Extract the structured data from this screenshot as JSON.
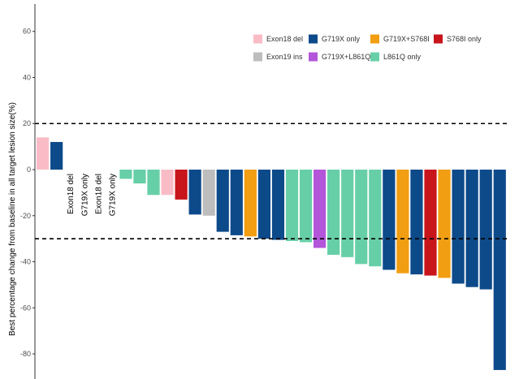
{
  "chart_data": {
    "type": "bar",
    "ylabel": "Best percentage change from baseline in all target lesion size(%)",
    "xlabel": "",
    "ylim": [
      -90,
      72
    ],
    "yticks": [
      60,
      40,
      20,
      0,
      -20,
      -40,
      -60,
      -80
    ],
    "reference_lines": [
      20,
      -30
    ],
    "grid": false,
    "legend_placement": "top-right",
    "legend": [
      {
        "label": "Exon18 del",
        "color": "#F9BCC7"
      },
      {
        "label": "G719X only",
        "color": "#0D4A8A"
      },
      {
        "label": "G719X+S768I",
        "color": "#F19E12"
      },
      {
        "label": "S768I only",
        "color": "#C8141B"
      },
      {
        "label": "Exon19 ins",
        "color": "#BDBDBD"
      },
      {
        "label": "G719X+L861Q",
        "color": "#B356D9"
      },
      {
        "label": "L861Q only",
        "color": "#67CFA8"
      }
    ],
    "bars": [
      {
        "value": 14,
        "group": "Exon18 del"
      },
      {
        "value": 12,
        "group": "G719X only"
      },
      {
        "value": 0,
        "group": "Exon18 del",
        "label": "Exon18 del"
      },
      {
        "value": 0,
        "group": "G719X only",
        "label": "G719X only"
      },
      {
        "value": 0,
        "group": "Exon18 del",
        "label": "Exon18 del"
      },
      {
        "value": 0,
        "group": "G719X only",
        "label": "G719X only"
      },
      {
        "value": -4,
        "group": "L861Q only"
      },
      {
        "value": -6,
        "group": "L861Q only"
      },
      {
        "value": -11,
        "group": "L861Q only"
      },
      {
        "value": -11,
        "group": "Exon18 del"
      },
      {
        "value": -13,
        "group": "S768I only"
      },
      {
        "value": -19.5,
        "group": "G719X only"
      },
      {
        "value": -20,
        "group": "Exon19 ins"
      },
      {
        "value": -27,
        "group": "G719X only"
      },
      {
        "value": -28.5,
        "group": "G719X only"
      },
      {
        "value": -29,
        "group": "G719X+S768I"
      },
      {
        "value": -30,
        "group": "G719X only"
      },
      {
        "value": -30.5,
        "group": "G719X only"
      },
      {
        "value": -31,
        "group": "L861Q only"
      },
      {
        "value": -31.5,
        "group": "L861Q only"
      },
      {
        "value": -34,
        "group": "G719X+L861Q"
      },
      {
        "value": -37,
        "group": "L861Q only"
      },
      {
        "value": -38,
        "group": "L861Q only"
      },
      {
        "value": -41,
        "group": "L861Q only"
      },
      {
        "value": -42,
        "group": "L861Q only"
      },
      {
        "value": -43.5,
        "group": "G719X only"
      },
      {
        "value": -45,
        "group": "G719X+S768I"
      },
      {
        "value": -45.5,
        "group": "G719X only"
      },
      {
        "value": -46,
        "group": "S768I only"
      },
      {
        "value": -47,
        "group": "G719X+S768I"
      },
      {
        "value": -49.5,
        "group": "G719X only"
      },
      {
        "value": -51,
        "group": "G719X only"
      },
      {
        "value": -52,
        "group": "G719X only"
      },
      {
        "value": -87,
        "group": "G719X only"
      }
    ]
  }
}
